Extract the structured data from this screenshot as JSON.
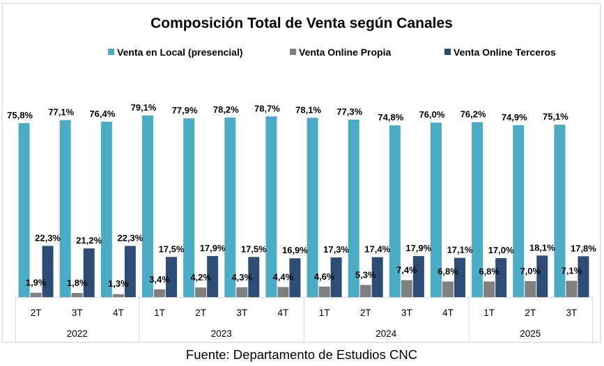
{
  "chart_data": {
    "type": "bar",
    "title": "Composición Total de Venta según Canales",
    "source": "Fuente: Departamento de Estudios CNC",
    "xlabel": "",
    "ylabel": "",
    "ylim": [
      0,
      100
    ],
    "grid": false,
    "legend_position": "top",
    "value_suffix": "%",
    "decimal_separator": ",",
    "categories": [
      "2T",
      "3T",
      "4T",
      "1T",
      "2T",
      "3T",
      "4T",
      "1T",
      "2T",
      "3T",
      "4T",
      "1T",
      "2T",
      "3T"
    ],
    "groups": [
      {
        "label": "2022",
        "count": 3
      },
      {
        "label": "2023",
        "count": 4
      },
      {
        "label": "2024",
        "count": 4
      },
      {
        "label": "2025",
        "count": 3
      }
    ],
    "series": [
      {
        "name": "Venta en Local (presencial)",
        "color": "#4bacc6",
        "values": [
          75.8,
          77.1,
          76.4,
          79.1,
          77.9,
          78.2,
          78.7,
          78.1,
          77.3,
          74.8,
          76.0,
          76.2,
          74.9,
          75.1
        ]
      },
      {
        "name": "Venta  Online Propia",
        "color": "#808080",
        "values": [
          1.9,
          1.8,
          1.3,
          3.4,
          4.2,
          4.3,
          4.4,
          4.6,
          5.3,
          7.4,
          6.8,
          6.8,
          7.0,
          7.1
        ]
      },
      {
        "name": "Venta  Online Terceros",
        "color": "#2e4d76",
        "values": [
          22.3,
          21.2,
          22.3,
          17.5,
          17.9,
          17.5,
          16.9,
          17.3,
          17.4,
          17.9,
          17.1,
          17.0,
          18.1,
          17.8
        ]
      }
    ]
  }
}
